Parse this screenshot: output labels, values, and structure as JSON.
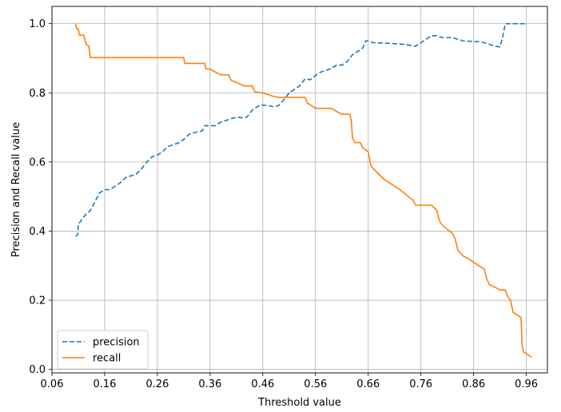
{
  "chart_data": {
    "type": "line",
    "title": "",
    "xlabel": "Threshold value",
    "ylabel": "Precision and Recall value",
    "xlim": [
      0.06,
      1.0
    ],
    "ylim": [
      -0.01,
      1.05
    ],
    "xticks": [
      0.06,
      0.16,
      0.26,
      0.36,
      0.46,
      0.56,
      0.66,
      0.76,
      0.86,
      0.96
    ],
    "xtick_labels": [
      "0.06",
      "0.16",
      "0.26",
      "0.36",
      "0.46",
      "0.56",
      "0.66",
      "0.76",
      "0.86",
      "0.96"
    ],
    "yticks": [
      0.0,
      0.2,
      0.4,
      0.6,
      0.8,
      1.0
    ],
    "ytick_labels": [
      "0.0",
      "0.2",
      "0.4",
      "0.6",
      "0.8",
      "1.0"
    ],
    "grid": true,
    "legend_position": "lower-left",
    "series": [
      {
        "name": "precision",
        "color": "#1f77b4",
        "style": "dashed",
        "points": [
          [
            0.105,
            0.385
          ],
          [
            0.109,
            0.39
          ],
          [
            0.11,
            0.42
          ],
          [
            0.115,
            0.43
          ],
          [
            0.12,
            0.44
          ],
          [
            0.125,
            0.45
          ],
          [
            0.13,
            0.455
          ],
          [
            0.135,
            0.465
          ],
          [
            0.14,
            0.48
          ],
          [
            0.15,
            0.51
          ],
          [
            0.16,
            0.52
          ],
          [
            0.17,
            0.52
          ],
          [
            0.18,
            0.53
          ],
          [
            0.19,
            0.54
          ],
          [
            0.2,
            0.555
          ],
          [
            0.21,
            0.56
          ],
          [
            0.22,
            0.565
          ],
          [
            0.23,
            0.58
          ],
          [
            0.24,
            0.6
          ],
          [
            0.25,
            0.615
          ],
          [
            0.26,
            0.62
          ],
          [
            0.27,
            0.63
          ],
          [
            0.28,
            0.645
          ],
          [
            0.29,
            0.65
          ],
          [
            0.3,
            0.655
          ],
          [
            0.31,
            0.665
          ],
          [
            0.32,
            0.68
          ],
          [
            0.33,
            0.685
          ],
          [
            0.345,
            0.69
          ],
          [
            0.35,
            0.705
          ],
          [
            0.36,
            0.705
          ],
          [
            0.37,
            0.705
          ],
          [
            0.38,
            0.715
          ],
          [
            0.39,
            0.72
          ],
          [
            0.4,
            0.725
          ],
          [
            0.41,
            0.73
          ],
          [
            0.42,
            0.728
          ],
          [
            0.43,
            0.73
          ],
          [
            0.44,
            0.75
          ],
          [
            0.45,
            0.76
          ],
          [
            0.455,
            0.765
          ],
          [
            0.47,
            0.763
          ],
          [
            0.48,
            0.76
          ],
          [
            0.49,
            0.763
          ],
          [
            0.5,
            0.78
          ],
          [
            0.51,
            0.8
          ],
          [
            0.52,
            0.81
          ],
          [
            0.53,
            0.82
          ],
          [
            0.54,
            0.84
          ],
          [
            0.55,
            0.838
          ],
          [
            0.56,
            0.85
          ],
          [
            0.57,
            0.86
          ],
          [
            0.58,
            0.865
          ],
          [
            0.59,
            0.87
          ],
          [
            0.6,
            0.88
          ],
          [
            0.61,
            0.88
          ],
          [
            0.62,
            0.89
          ],
          [
            0.625,
            0.9
          ],
          [
            0.63,
            0.91
          ],
          [
            0.64,
            0.92
          ],
          [
            0.65,
            0.93
          ],
          [
            0.655,
            0.95
          ],
          [
            0.66,
            0.95
          ],
          [
            0.67,
            0.945
          ],
          [
            0.7,
            0.943
          ],
          [
            0.73,
            0.94
          ],
          [
            0.75,
            0.935
          ],
          [
            0.76,
            0.945
          ],
          [
            0.77,
            0.955
          ],
          [
            0.78,
            0.965
          ],
          [
            0.79,
            0.965
          ],
          [
            0.8,
            0.96
          ],
          [
            0.82,
            0.96
          ],
          [
            0.84,
            0.95
          ],
          [
            0.87,
            0.948
          ],
          [
            0.88,
            0.945
          ],
          [
            0.89,
            0.94
          ],
          [
            0.9,
            0.935
          ],
          [
            0.91,
            0.933
          ],
          [
            0.915,
            0.96
          ],
          [
            0.92,
            1.0
          ],
          [
            0.96,
            1.0
          ]
        ]
      },
      {
        "name": "recall",
        "color": "#ff7f0e",
        "style": "solid",
        "points": [
          [
            0.105,
            1.0
          ],
          [
            0.107,
            0.985
          ],
          [
            0.11,
            0.985
          ],
          [
            0.112,
            0.967
          ],
          [
            0.12,
            0.967
          ],
          [
            0.125,
            0.94
          ],
          [
            0.13,
            0.935
          ],
          [
            0.133,
            0.902
          ],
          [
            0.16,
            0.902
          ],
          [
            0.2,
            0.902
          ],
          [
            0.25,
            0.902
          ],
          [
            0.3,
            0.902
          ],
          [
            0.31,
            0.902
          ],
          [
            0.312,
            0.885
          ],
          [
            0.35,
            0.885
          ],
          [
            0.352,
            0.869
          ],
          [
            0.36,
            0.869
          ],
          [
            0.37,
            0.86
          ],
          [
            0.38,
            0.852
          ],
          [
            0.395,
            0.852
          ],
          [
            0.4,
            0.836
          ],
          [
            0.41,
            0.83
          ],
          [
            0.425,
            0.82
          ],
          [
            0.44,
            0.82
          ],
          [
            0.445,
            0.803
          ],
          [
            0.46,
            0.8
          ],
          [
            0.48,
            0.79
          ],
          [
            0.49,
            0.787
          ],
          [
            0.5,
            0.787
          ],
          [
            0.54,
            0.787
          ],
          [
            0.545,
            0.77
          ],
          [
            0.56,
            0.755
          ],
          [
            0.59,
            0.755
          ],
          [
            0.6,
            0.746
          ],
          [
            0.61,
            0.738
          ],
          [
            0.625,
            0.738
          ],
          [
            0.628,
            0.72
          ],
          [
            0.63,
            0.67
          ],
          [
            0.635,
            0.656
          ],
          [
            0.645,
            0.656
          ],
          [
            0.65,
            0.64
          ],
          [
            0.66,
            0.63
          ],
          [
            0.665,
            0.59
          ],
          [
            0.67,
            0.58
          ],
          [
            0.68,
            0.565
          ],
          [
            0.69,
            0.55
          ],
          [
            0.7,
            0.54
          ],
          [
            0.71,
            0.53
          ],
          [
            0.72,
            0.52
          ],
          [
            0.73,
            0.508
          ],
          [
            0.74,
            0.495
          ],
          [
            0.745,
            0.49
          ],
          [
            0.75,
            0.475
          ],
          [
            0.78,
            0.475
          ],
          [
            0.79,
            0.46
          ],
          [
            0.795,
            0.43
          ],
          [
            0.8,
            0.418
          ],
          [
            0.81,
            0.405
          ],
          [
            0.82,
            0.393
          ],
          [
            0.825,
            0.377
          ],
          [
            0.83,
            0.345
          ],
          [
            0.84,
            0.328
          ],
          [
            0.85,
            0.32
          ],
          [
            0.86,
            0.31
          ],
          [
            0.87,
            0.3
          ],
          [
            0.88,
            0.29
          ],
          [
            0.885,
            0.262
          ],
          [
            0.89,
            0.245
          ],
          [
            0.9,
            0.238
          ],
          [
            0.91,
            0.23
          ],
          [
            0.92,
            0.23
          ],
          [
            0.925,
            0.21
          ],
          [
            0.93,
            0.2
          ],
          [
            0.935,
            0.165
          ],
          [
            0.945,
            0.155
          ],
          [
            0.95,
            0.15
          ],
          [
            0.952,
            0.07
          ],
          [
            0.955,
            0.05
          ],
          [
            0.965,
            0.04
          ],
          [
            0.97,
            0.035
          ]
        ]
      }
    ]
  }
}
